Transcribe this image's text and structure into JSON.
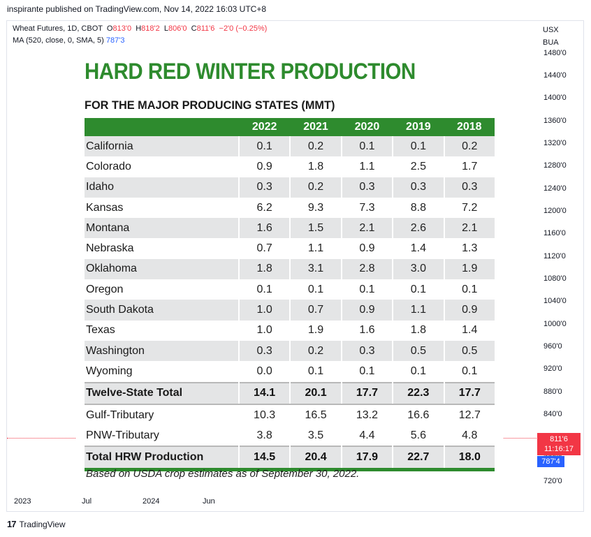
{
  "header": {
    "published_by": "inspirante published on TradingView.com, Nov 14, 2022 16:03 UTC+8"
  },
  "legend": {
    "symbol": "Wheat Futures, 1D, CBOT",
    "o_label": "O",
    "o_value": "813'0",
    "h_label": "H",
    "h_value": "818'2",
    "l_label": "L",
    "l_value": "806'0",
    "c_label": "C",
    "c_value": "811'6",
    "change": "−2'0 (−0.25%)",
    "ma_label": "MA (520, close, 0, SMA, 5)",
    "ma_value": "787'3"
  },
  "currency": "USX",
  "unit": "BUA",
  "price_ticks": [
    "1480'0",
    "1440'0",
    "1400'0",
    "1360'0",
    "1320'0",
    "1280'0",
    "1240'0",
    "1200'0",
    "1160'0",
    "1120'0",
    "1080'0",
    "1040'0",
    "1000'0",
    "960'0",
    "920'0",
    "880'0",
    "840'0",
    "760'0",
    "720'0"
  ],
  "last_price": "811'6",
  "countdown": "11:16:17",
  "ma_badge": "787'4",
  "time_ticks": [
    "2023",
    "Jul",
    "2024",
    "Jun"
  ],
  "brand": "TradingView",
  "infographic": {
    "title": "HARD RED WINTER PRODUCTION",
    "subtitle": "FOR THE MAJOR PRODUCING STATES (MMT)",
    "years": [
      "2022",
      "2021",
      "2020",
      "2019",
      "2018"
    ],
    "rows": [
      {
        "state": "California",
        "values": [
          "0.1",
          "0.2",
          "0.1",
          "0.1",
          "0.2"
        ]
      },
      {
        "state": "Colorado",
        "values": [
          "0.9",
          "1.8",
          "1.1",
          "2.5",
          "1.7"
        ]
      },
      {
        "state": "Idaho",
        "values": [
          "0.3",
          "0.2",
          "0.3",
          "0.3",
          "0.3"
        ]
      },
      {
        "state": "Kansas",
        "values": [
          "6.2",
          "9.3",
          "7.3",
          "8.8",
          "7.2"
        ]
      },
      {
        "state": "Montana",
        "values": [
          "1.6",
          "1.5",
          "2.1",
          "2.6",
          "2.1"
        ]
      },
      {
        "state": "Nebraska",
        "values": [
          "0.7",
          "1.1",
          "0.9",
          "1.4",
          "1.3"
        ]
      },
      {
        "state": "Oklahoma",
        "values": [
          "1.8",
          "3.1",
          "2.8",
          "3.0",
          "1.9"
        ]
      },
      {
        "state": "Oregon",
        "values": [
          "0.1",
          "0.1",
          "0.1",
          "0.1",
          "0.1"
        ]
      },
      {
        "state": "South Dakota",
        "values": [
          "1.0",
          "0.7",
          "0.9",
          "1.1",
          "0.9"
        ]
      },
      {
        "state": "Texas",
        "values": [
          "1.0",
          "1.9",
          "1.6",
          "1.8",
          "1.4"
        ]
      },
      {
        "state": "Washington",
        "values": [
          "0.3",
          "0.2",
          "0.3",
          "0.5",
          "0.5"
        ]
      },
      {
        "state": "Wyoming",
        "values": [
          "0.0",
          "0.1",
          "0.1",
          "0.1",
          "0.1"
        ]
      },
      {
        "state": "Twelve-State Total",
        "values": [
          "14.1",
          "20.1",
          "17.7",
          "22.3",
          "17.7"
        ]
      },
      {
        "state": "Gulf-Tributary",
        "values": [
          "10.3",
          "16.5",
          "13.2",
          "16.6",
          "12.7"
        ]
      },
      {
        "state": "PNW-Tributary",
        "values": [
          "3.8",
          "3.5",
          "4.4",
          "5.6",
          "4.8"
        ]
      },
      {
        "state": "Total HRW Production",
        "values": [
          "14.5",
          "20.4",
          "17.9",
          "22.7",
          "18.0"
        ]
      }
    ],
    "note": "Based on USDA crop estimates as of September 30, 2022."
  },
  "colors": {
    "accent_green": "#2e8b2e",
    "down_red": "#f23645",
    "ma_blue": "#2962ff"
  }
}
